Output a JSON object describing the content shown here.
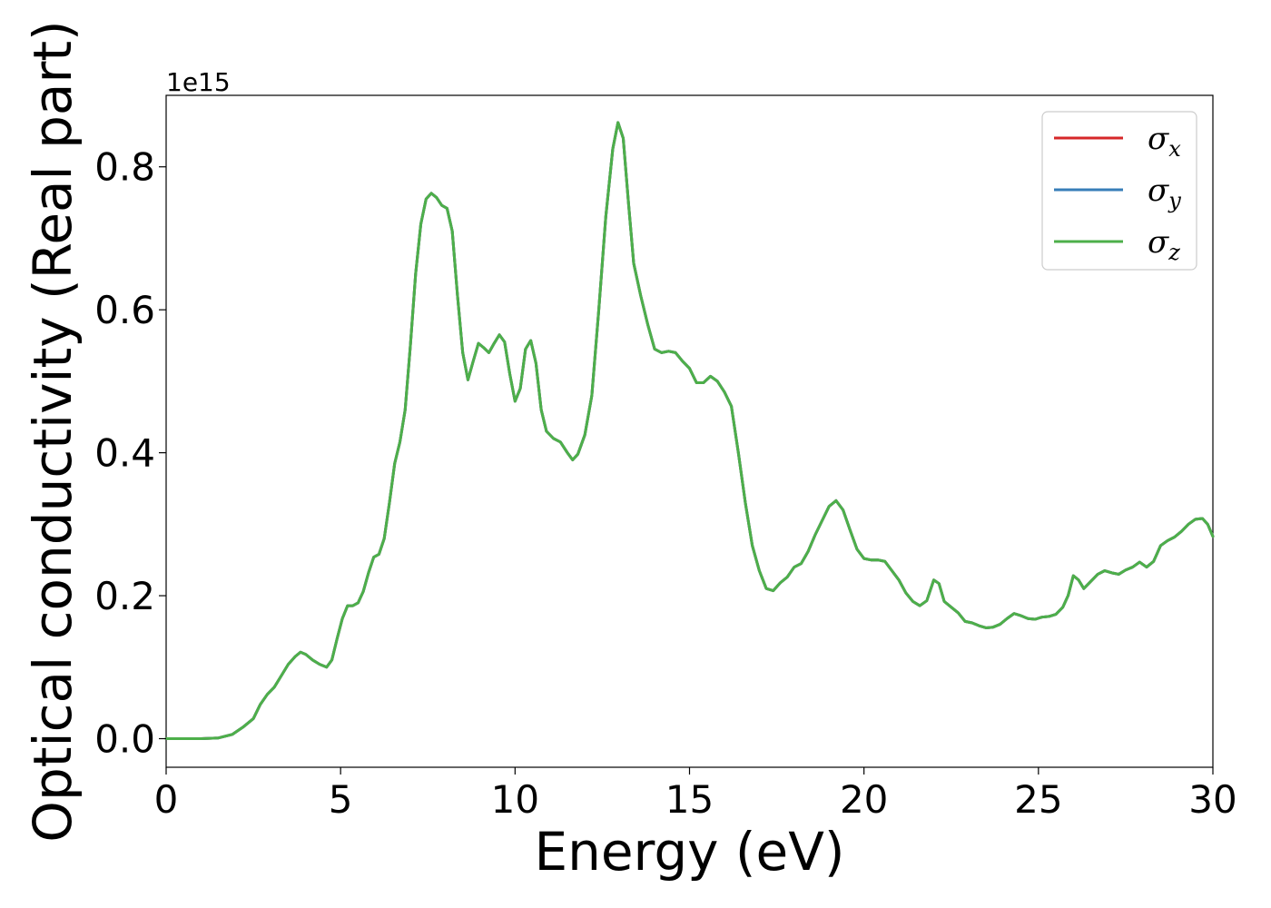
{
  "chart_data": {
    "type": "line",
    "title": "",
    "xlabel": "Energy (eV)",
    "ylabel": "Optical conductivity (Real part)",
    "y_offset_label": "1e15",
    "xlim": [
      0,
      30
    ],
    "ylim": [
      -0.04,
      0.9
    ],
    "x_ticks": [
      0,
      5,
      10,
      15,
      20,
      25,
      30
    ],
    "x_tick_labels": [
      "0",
      "5",
      "10",
      "15",
      "20",
      "25",
      "30"
    ],
    "y_ticks": [
      0.0,
      0.2,
      0.4,
      0.6,
      0.8
    ],
    "y_tick_labels": [
      "0.0",
      "0.2",
      "0.4",
      "0.6",
      "0.8"
    ],
    "grid": false,
    "legend_position": "top-right",
    "series": [
      {
        "name": "σx",
        "symbol": "σ",
        "subscript": "x",
        "color": "#d62728",
        "points": "shared"
      },
      {
        "name": "σy",
        "symbol": "σ",
        "subscript": "y",
        "color": "#377eb8",
        "points": "shared"
      },
      {
        "name": "σz",
        "symbol": "σ",
        "subscript": "z",
        "color": "#4daf4a",
        "points": "shared"
      }
    ],
    "points": [
      [
        0,
        0.0
      ],
      [
        1.0,
        0.0
      ],
      [
        1.5,
        0.001
      ],
      [
        1.9,
        0.006
      ],
      [
        2.2,
        0.016
      ],
      [
        2.5,
        0.028
      ],
      [
        2.7,
        0.048
      ],
      [
        2.9,
        0.062
      ],
      [
        3.1,
        0.072
      ],
      [
        3.3,
        0.088
      ],
      [
        3.5,
        0.104
      ],
      [
        3.7,
        0.115
      ],
      [
        3.85,
        0.121
      ],
      [
        4.0,
        0.118
      ],
      [
        4.2,
        0.11
      ],
      [
        4.4,
        0.104
      ],
      [
        4.6,
        0.1
      ],
      [
        4.75,
        0.11
      ],
      [
        4.9,
        0.14
      ],
      [
        5.05,
        0.168
      ],
      [
        5.2,
        0.186
      ],
      [
        5.35,
        0.186
      ],
      [
        5.5,
        0.19
      ],
      [
        5.65,
        0.206
      ],
      [
        5.8,
        0.232
      ],
      [
        5.95,
        0.254
      ],
      [
        6.1,
        0.258
      ],
      [
        6.25,
        0.28
      ],
      [
        6.4,
        0.33
      ],
      [
        6.55,
        0.385
      ],
      [
        6.7,
        0.415
      ],
      [
        6.85,
        0.46
      ],
      [
        7.0,
        0.55
      ],
      [
        7.15,
        0.65
      ],
      [
        7.3,
        0.72
      ],
      [
        7.45,
        0.755
      ],
      [
        7.6,
        0.763
      ],
      [
        7.75,
        0.757
      ],
      [
        7.9,
        0.746
      ],
      [
        8.05,
        0.742
      ],
      [
        8.2,
        0.71
      ],
      [
        8.35,
        0.62
      ],
      [
        8.5,
        0.54
      ],
      [
        8.65,
        0.502
      ],
      [
        8.8,
        0.528
      ],
      [
        8.95,
        0.553
      ],
      [
        9.1,
        0.547
      ],
      [
        9.25,
        0.54
      ],
      [
        9.4,
        0.553
      ],
      [
        9.55,
        0.565
      ],
      [
        9.7,
        0.555
      ],
      [
        9.85,
        0.51
      ],
      [
        10.0,
        0.472
      ],
      [
        10.15,
        0.49
      ],
      [
        10.3,
        0.545
      ],
      [
        10.45,
        0.557
      ],
      [
        10.6,
        0.525
      ],
      [
        10.75,
        0.46
      ],
      [
        10.9,
        0.43
      ],
      [
        11.1,
        0.42
      ],
      [
        11.3,
        0.415
      ],
      [
        11.5,
        0.4
      ],
      [
        11.65,
        0.39
      ],
      [
        11.8,
        0.398
      ],
      [
        12.0,
        0.425
      ],
      [
        12.2,
        0.48
      ],
      [
        12.4,
        0.6
      ],
      [
        12.6,
        0.73
      ],
      [
        12.8,
        0.825
      ],
      [
        12.95,
        0.862
      ],
      [
        13.1,
        0.84
      ],
      [
        13.25,
        0.75
      ],
      [
        13.4,
        0.665
      ],
      [
        13.6,
        0.62
      ],
      [
        13.8,
        0.58
      ],
      [
        14.0,
        0.545
      ],
      [
        14.2,
        0.54
      ],
      [
        14.4,
        0.542
      ],
      [
        14.6,
        0.54
      ],
      [
        14.8,
        0.528
      ],
      [
        15.0,
        0.518
      ],
      [
        15.2,
        0.498
      ],
      [
        15.4,
        0.498
      ],
      [
        15.6,
        0.507
      ],
      [
        15.8,
        0.5
      ],
      [
        16.0,
        0.485
      ],
      [
        16.2,
        0.465
      ],
      [
        16.4,
        0.4
      ],
      [
        16.6,
        0.33
      ],
      [
        16.8,
        0.27
      ],
      [
        17.0,
        0.235
      ],
      [
        17.2,
        0.21
      ],
      [
        17.4,
        0.207
      ],
      [
        17.6,
        0.218
      ],
      [
        17.8,
        0.226
      ],
      [
        18.0,
        0.24
      ],
      [
        18.2,
        0.245
      ],
      [
        18.4,
        0.262
      ],
      [
        18.6,
        0.285
      ],
      [
        18.8,
        0.305
      ],
      [
        19.0,
        0.325
      ],
      [
        19.2,
        0.333
      ],
      [
        19.4,
        0.32
      ],
      [
        19.6,
        0.292
      ],
      [
        19.8,
        0.265
      ],
      [
        20.0,
        0.252
      ],
      [
        20.2,
        0.25
      ],
      [
        20.4,
        0.25
      ],
      [
        20.6,
        0.248
      ],
      [
        20.8,
        0.235
      ],
      [
        21.0,
        0.222
      ],
      [
        21.2,
        0.204
      ],
      [
        21.4,
        0.192
      ],
      [
        21.6,
        0.186
      ],
      [
        21.8,
        0.193
      ],
      [
        22.0,
        0.222
      ],
      [
        22.15,
        0.217
      ],
      [
        22.3,
        0.192
      ],
      [
        22.5,
        0.184
      ],
      [
        22.7,
        0.176
      ],
      [
        22.9,
        0.164
      ],
      [
        23.1,
        0.162
      ],
      [
        23.3,
        0.158
      ],
      [
        23.5,
        0.155
      ],
      [
        23.7,
        0.156
      ],
      [
        23.9,
        0.16
      ],
      [
        24.1,
        0.168
      ],
      [
        24.3,
        0.175
      ],
      [
        24.5,
        0.172
      ],
      [
        24.7,
        0.168
      ],
      [
        24.9,
        0.167
      ],
      [
        25.1,
        0.17
      ],
      [
        25.3,
        0.171
      ],
      [
        25.5,
        0.174
      ],
      [
        25.7,
        0.184
      ],
      [
        25.85,
        0.2
      ],
      [
        26.0,
        0.228
      ],
      [
        26.15,
        0.222
      ],
      [
        26.3,
        0.21
      ],
      [
        26.5,
        0.22
      ],
      [
        26.7,
        0.23
      ],
      [
        26.9,
        0.235
      ],
      [
        27.1,
        0.232
      ],
      [
        27.3,
        0.23
      ],
      [
        27.5,
        0.236
      ],
      [
        27.7,
        0.24
      ],
      [
        27.9,
        0.247
      ],
      [
        28.1,
        0.24
      ],
      [
        28.3,
        0.248
      ],
      [
        28.5,
        0.27
      ],
      [
        28.7,
        0.277
      ],
      [
        28.9,
        0.282
      ],
      [
        29.1,
        0.29
      ],
      [
        29.3,
        0.3
      ],
      [
        29.5,
        0.307
      ],
      [
        29.7,
        0.308
      ],
      [
        29.85,
        0.3
      ],
      [
        30.0,
        0.283
      ]
    ]
  }
}
